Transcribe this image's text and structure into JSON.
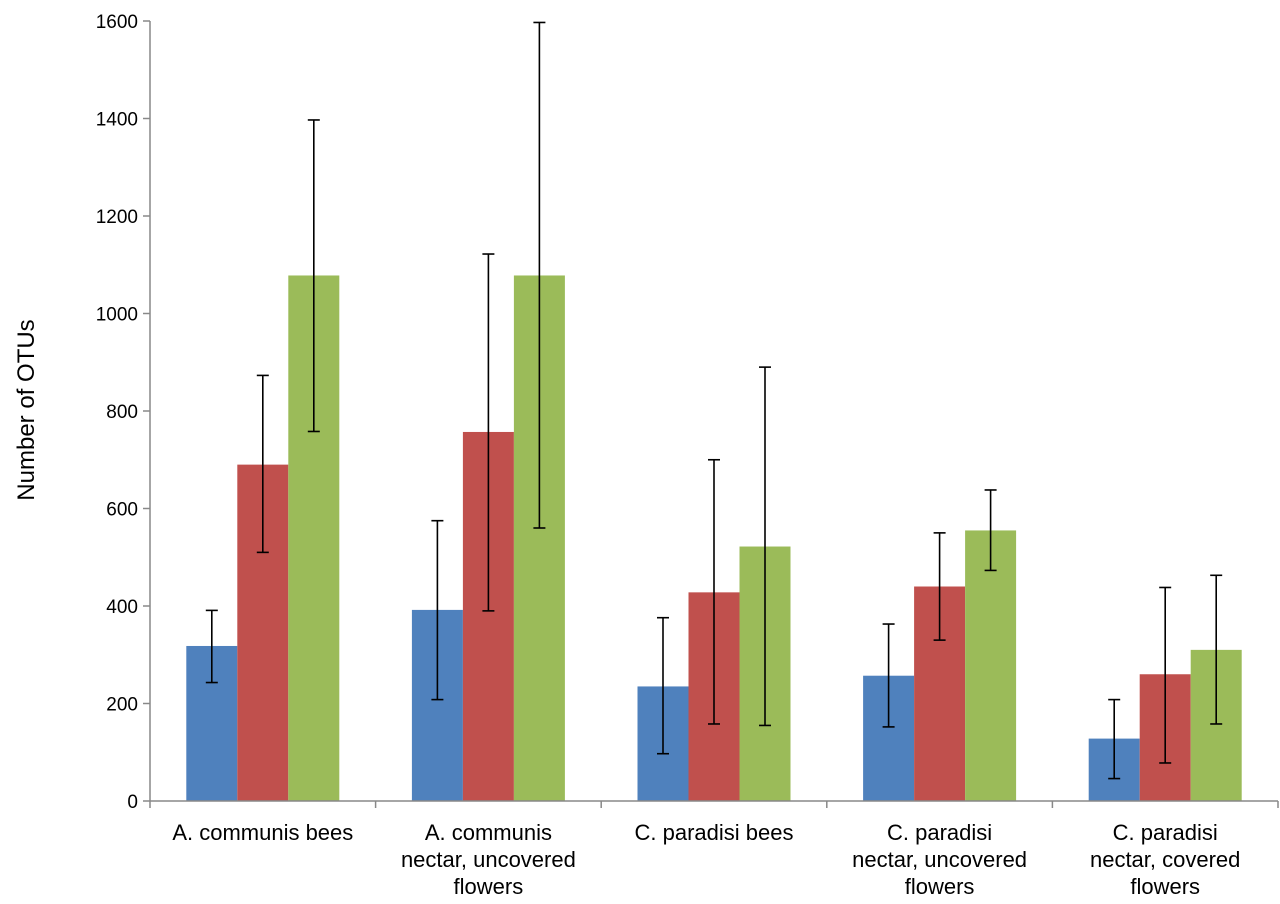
{
  "chart_data": {
    "type": "bar",
    "title": "",
    "xlabel": "",
    "ylabel": "Number of OTUs",
    "ylim": [
      0,
      1600
    ],
    "yticks": [
      0,
      200,
      400,
      600,
      800,
      1000,
      1200,
      1400,
      1600
    ],
    "grid": false,
    "legend": "none",
    "categories": [
      [
        "A. communis bees"
      ],
      [
        "A. communis",
        "nectar, uncovered",
        "flowers"
      ],
      [
        "C. paradisi bees"
      ],
      [
        "C. paradisi",
        "nectar, uncovered",
        "flowers"
      ],
      [
        "C. paradisi",
        "nectar, covered",
        "flowers"
      ]
    ],
    "series": [
      {
        "color": "#4f81bd",
        "values": [
          318,
          392,
          235,
          257,
          128
        ],
        "err_low": [
          243,
          208,
          97,
          152,
          46
        ],
        "err_high": [
          391,
          575,
          376,
          363,
          208
        ]
      },
      {
        "color": "#c0504d",
        "values": [
          690,
          757,
          428,
          440,
          260
        ],
        "err_low": [
          510,
          390,
          158,
          330,
          78
        ],
        "err_high": [
          873,
          1122,
          700,
          550,
          438
        ]
      },
      {
        "color": "#9bbb59",
        "values": [
          1078,
          1078,
          522,
          555,
          310
        ],
        "err_low": [
          758,
          560,
          155,
          473,
          158
        ],
        "err_high": [
          1397,
          1597,
          890,
          638,
          463
        ]
      }
    ]
  }
}
